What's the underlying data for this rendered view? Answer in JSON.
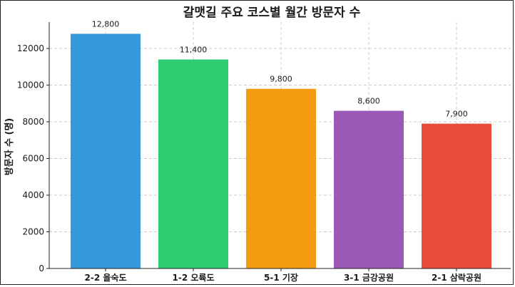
{
  "chart_data": {
    "type": "bar",
    "title": "갈맷길 주요 코스별 월간 방문자 수",
    "xlabel": "",
    "ylabel": "방문자 수 (명)",
    "categories": [
      "2-2 을숙도",
      "1-2 오륙도",
      "5-1 기장",
      "3-1 금강공원",
      "2-1 삼락공원"
    ],
    "values": [
      12800,
      11400,
      9800,
      8600,
      7900
    ],
    "data_labels": [
      "12,800",
      "11,400",
      "9,800",
      "8,600",
      "7,900"
    ],
    "colors": [
      "#3498db",
      "#2ecc71",
      "#f39c12",
      "#9b59b6",
      "#e74c3c"
    ],
    "ylim": [
      0,
      13440
    ],
    "yticks": [
      0,
      2000,
      4000,
      6000,
      8000,
      10000,
      12000
    ],
    "ytick_labels": [
      "0",
      "2000",
      "4000",
      "6000",
      "8000",
      "10000",
      "12000"
    ],
    "grid": true,
    "legend": "none"
  }
}
